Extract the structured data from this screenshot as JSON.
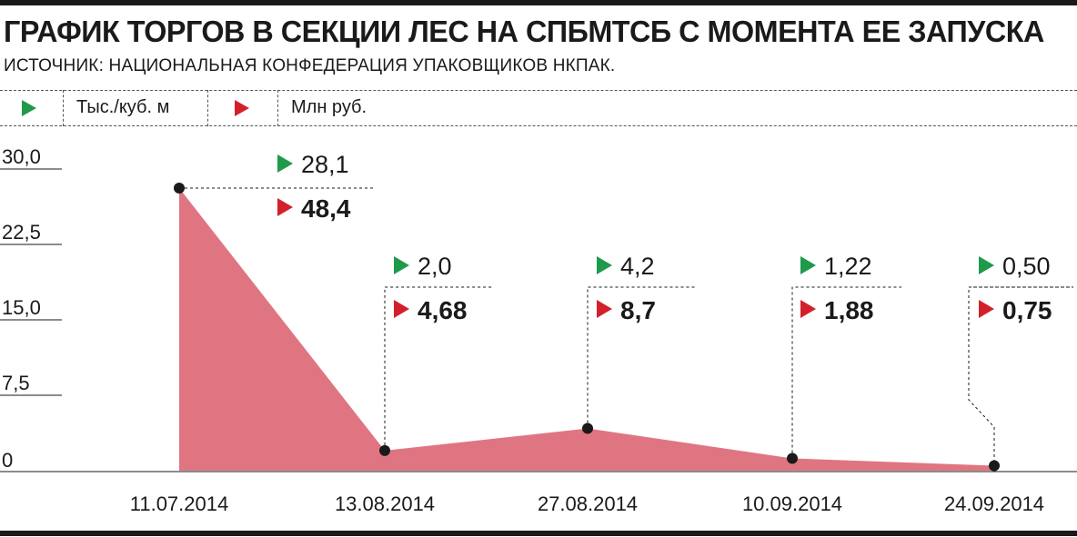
{
  "header": {
    "title": "ГРАФИК ТОРГОВ В СЕКЦИИ ЛЕС НА СПБМТСБ С МОМЕНТА ЕЕ ЗАПУСКА",
    "source": "ИСТОЧНИК: НАЦИОНАЛЬНАЯ КОНФЕДЕРАЦИЯ УПАКОВЩИКОВ НКПАК."
  },
  "legend": {
    "volume_label": "Тыс./куб. м",
    "value_label": "Млн руб.",
    "volume_marker": "green-triangle",
    "value_marker": "red-triangle"
  },
  "colors": {
    "area_fill": "#e07582",
    "green": "#1f9a4b",
    "red": "#d4202a",
    "ink": "#1a1a1a"
  },
  "chart_data": {
    "type": "area",
    "x": [
      "11.07.2014",
      "13.08.2014",
      "27.08.2014",
      "10.09.2014",
      "24.09.2014"
    ],
    "ylim": [
      0,
      30
    ],
    "yticks": [
      "0",
      "7,5",
      "15,0",
      "22,5",
      "30,0"
    ],
    "series": [
      {
        "name": "Тыс./куб. м",
        "values": [
          28.1,
          2.0,
          4.2,
          1.22,
          0.5
        ],
        "labels": [
          "28,1",
          "2,0",
          "4,2",
          "1,22",
          "0,50"
        ]
      },
      {
        "name": "Млн руб.",
        "values": [
          48.4,
          4.68,
          8.7,
          1.88,
          0.75
        ],
        "labels": [
          "48,4",
          "4,68",
          "8,7",
          "1,88",
          "0,75"
        ]
      }
    ],
    "grid": false
  }
}
